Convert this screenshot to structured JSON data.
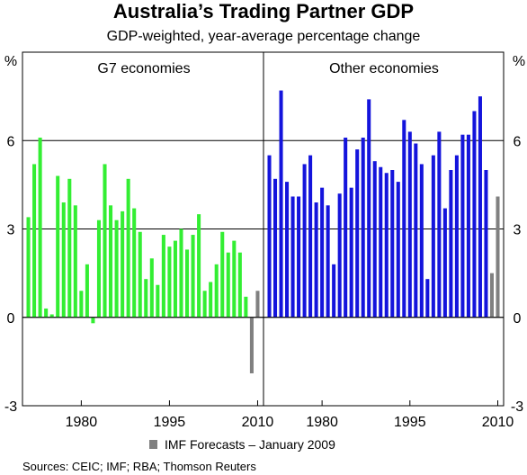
{
  "title": "Australia’s Trading Partner GDP",
  "subtitle": "GDP-weighted, year-average percentage change",
  "source": "Sources: CEIC; IMF; RBA; Thomson Reuters",
  "chart_data": {
    "type": "bar",
    "unit_left": "%",
    "unit_right": "%",
    "ylim": [
      -3,
      9
    ],
    "yticks": [
      "-3",
      "0",
      "3",
      "6"
    ],
    "grid": true,
    "xticks": [
      "1980",
      "1995",
      "2010"
    ],
    "legend": {
      "label": "IMF Forecasts – January 2009",
      "color": "#808080",
      "placement": "bottom-center"
    },
    "panels": [
      {
        "name": "G7 economies",
        "color": "#33ee33",
        "forecast_color": "#808080",
        "x": [
          1971,
          1972,
          1973,
          1974,
          1975,
          1976,
          1977,
          1978,
          1979,
          1980,
          1981,
          1982,
          1983,
          1984,
          1985,
          1986,
          1987,
          1988,
          1989,
          1990,
          1991,
          1992,
          1993,
          1994,
          1995,
          1996,
          1997,
          1998,
          1999,
          2000,
          2001,
          2002,
          2003,
          2004,
          2005,
          2006,
          2007,
          2008,
          2009,
          2010
        ],
        "values": [
          3.4,
          5.2,
          6.1,
          0.3,
          0.1,
          4.8,
          3.9,
          4.7,
          3.8,
          0.9,
          1.8,
          -0.2,
          3.3,
          5.2,
          3.8,
          3.3,
          3.6,
          4.7,
          3.7,
          2.9,
          1.3,
          2.0,
          1.1,
          2.8,
          2.4,
          2.6,
          3.0,
          2.3,
          2.8,
          3.5,
          0.9,
          1.2,
          1.8,
          2.9,
          2.2,
          2.6,
          2.2,
          0.7,
          -1.9,
          0.9
        ],
        "forecast": [
          false,
          false,
          false,
          false,
          false,
          false,
          false,
          false,
          false,
          false,
          false,
          false,
          false,
          false,
          false,
          false,
          false,
          false,
          false,
          false,
          false,
          false,
          false,
          false,
          false,
          false,
          false,
          false,
          false,
          false,
          false,
          false,
          false,
          false,
          false,
          false,
          false,
          false,
          true,
          true
        ]
      },
      {
        "name": "Other economies",
        "color": "#1414dc",
        "forecast_color": "#808080",
        "x": [
          1971,
          1972,
          1973,
          1974,
          1975,
          1976,
          1977,
          1978,
          1979,
          1980,
          1981,
          1982,
          1983,
          1984,
          1985,
          1986,
          1987,
          1988,
          1989,
          1990,
          1991,
          1992,
          1993,
          1994,
          1995,
          1996,
          1997,
          1998,
          1999,
          2000,
          2001,
          2002,
          2003,
          2004,
          2005,
          2006,
          2007,
          2008,
          2009,
          2010
        ],
        "values": [
          5.5,
          4.7,
          7.7,
          4.6,
          4.1,
          4.1,
          5.2,
          5.5,
          3.9,
          4.4,
          3.8,
          1.8,
          4.2,
          6.1,
          4.4,
          5.7,
          6.1,
          7.4,
          5.3,
          5.1,
          4.9,
          5.0,
          4.6,
          6.7,
          6.3,
          5.9,
          5.2,
          1.3,
          5.5,
          6.3,
          3.7,
          5.0,
          5.5,
          6.2,
          6.2,
          7.0,
          7.5,
          5.0,
          1.5,
          4.1
        ],
        "forecast": [
          false,
          false,
          false,
          false,
          false,
          false,
          false,
          false,
          false,
          false,
          false,
          false,
          false,
          false,
          false,
          false,
          false,
          false,
          false,
          false,
          false,
          false,
          false,
          false,
          false,
          false,
          false,
          false,
          false,
          false,
          false,
          false,
          false,
          false,
          false,
          false,
          false,
          false,
          true,
          true
        ]
      }
    ]
  }
}
